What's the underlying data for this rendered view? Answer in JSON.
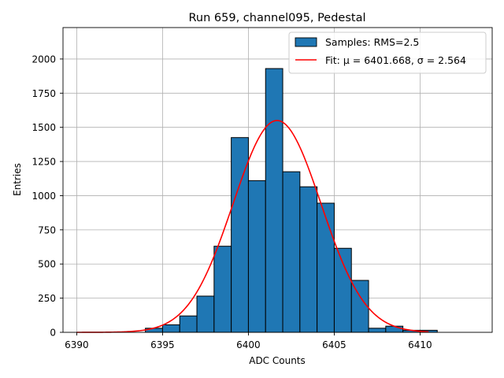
{
  "chart_data": {
    "type": "bar",
    "title": "Run 659, channel095, Pedestal",
    "xlabel": "ADC Counts",
    "ylabel": "Entries",
    "xlim": [
      6389.2,
      6414.2
    ],
    "ylim": [
      0,
      2230
    ],
    "xticks": [
      6390,
      6395,
      6400,
      6405,
      6410
    ],
    "yticks": [
      0,
      250,
      500,
      750,
      1000,
      1250,
      1500,
      1750,
      2000
    ],
    "grid": true,
    "legend_position": "top-right",
    "histogram": {
      "name": "Samples: RMS=2.5",
      "color": "#1f77b4",
      "edgecolor": "#000000",
      "bin_edges": [
        6394,
        6395,
        6396,
        6397,
        6398,
        6399,
        6400,
        6401,
        6402,
        6403,
        6404,
        6405,
        6406,
        6407,
        6408,
        6409,
        6410,
        6411
      ],
      "values": [
        30,
        55,
        120,
        265,
        630,
        1425,
        1110,
        1930,
        1175,
        1065,
        945,
        615,
        380,
        30,
        45,
        15,
        15
      ]
    },
    "fit": {
      "name": "Fit: μ = 6401.668, σ = 2.564",
      "color": "#ff0000",
      "mu": 6401.668,
      "sigma": 2.564,
      "amplitude": 1550,
      "x_range": [
        6390,
        6410.5
      ]
    }
  }
}
